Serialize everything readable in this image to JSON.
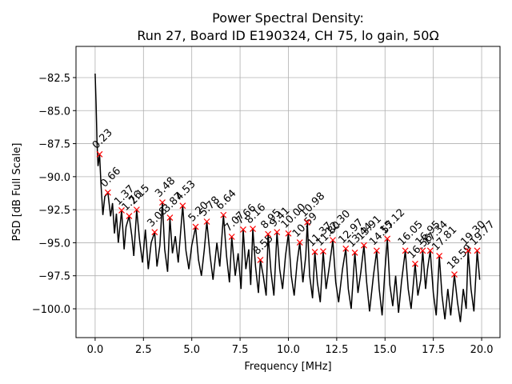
{
  "chart_data": {
    "type": "line",
    "title": [
      "Power Spectral Density:",
      "Run 27, Board ID E190324, CH 75, lo gain, 50Ω"
    ],
    "xlabel": "Frequency [MHz]",
    "ylabel": "PSD [dB Full Scale]",
    "xlim": [
      -0.99,
      20.95
    ],
    "ylim": [
      -102.18,
      -80.14
    ],
    "xticks": [
      {
        "value": 0,
        "label": "0.0"
      },
      {
        "value": 2.5,
        "label": "2.5"
      },
      {
        "value": 5,
        "label": "5.0"
      },
      {
        "value": 7.5,
        "label": "7.5"
      },
      {
        "value": 10,
        "label": "10.0"
      },
      {
        "value": 12.5,
        "label": "12.5"
      },
      {
        "value": 15,
        "label": "15.0"
      },
      {
        "value": 17.5,
        "label": "17.5"
      },
      {
        "value": 20,
        "label": "20.0"
      }
    ],
    "yticks": [
      {
        "value": -82.5,
        "label": "−82.5"
      },
      {
        "value": -85,
        "label": "−85.0"
      },
      {
        "value": -87.5,
        "label": "−87.5"
      },
      {
        "value": -90,
        "label": "−90.0"
      },
      {
        "value": -92.5,
        "label": "−92.5"
      },
      {
        "value": -95,
        "label": "−95.0"
      },
      {
        "value": -97.5,
        "label": "−97.5"
      },
      {
        "value": -100,
        "label": "−100.0"
      }
    ],
    "grid": true,
    "series": [
      {
        "style": "line",
        "color": "#000000",
        "x": [
          0,
          0.05,
          0.1,
          0.15,
          0.23,
          0.3,
          0.4,
          0.5,
          0.66,
          0.8,
          0.9,
          1.0,
          1.1,
          1.2,
          1.37,
          1.5,
          1.6,
          1.76,
          1.9,
          2.0,
          2.15,
          2.3,
          2.45,
          2.6,
          2.75,
          2.9,
          3.08,
          3.2,
          3.35,
          3.48,
          3.6,
          3.75,
          3.87,
          4.0,
          4.15,
          4.3,
          4.53,
          4.7,
          4.85,
          5.0,
          5.2,
          5.35,
          5.5,
          5.65,
          5.78,
          5.95,
          6.1,
          6.3,
          6.45,
          6.64,
          6.8,
          6.95,
          7.07,
          7.25,
          7.4,
          7.55,
          7.66,
          7.8,
          7.95,
          8.05,
          8.16,
          8.3,
          8.45,
          8.55,
          8.7,
          8.85,
          8.95,
          9.1,
          9.25,
          9.41,
          9.55,
          9.7,
          9.85,
          10.0,
          10.15,
          10.3,
          10.45,
          10.59,
          10.75,
          10.9,
          10.98,
          11.1,
          11.25,
          11.37,
          11.5,
          11.65,
          11.8,
          11.95,
          12.1,
          12.3,
          12.45,
          12.6,
          12.8,
          12.97,
          13.1,
          13.25,
          13.44,
          13.6,
          13.75,
          13.91,
          14.05,
          14.2,
          14.4,
          14.57,
          14.7,
          14.85,
          15.0,
          15.12,
          15.25,
          15.4,
          15.55,
          15.7,
          15.85,
          16.05,
          16.2,
          16.35,
          16.56,
          16.7,
          16.85,
          16.95,
          17.1,
          17.2,
          17.34,
          17.5,
          17.65,
          17.81,
          17.95,
          18.1,
          18.25,
          18.4,
          18.59,
          18.75,
          18.9,
          19.05,
          19.2,
          19.3,
          19.45,
          19.6,
          19.77,
          19.9
        ],
        "values": [
          -82.2,
          -84.5,
          -87.5,
          -89.2,
          -88.3,
          -90.5,
          -92.9,
          -91.5,
          -91.2,
          -93.0,
          -92.0,
          -94.3,
          -92.8,
          -95.0,
          -92.55,
          -95.5,
          -93.8,
          -92.98,
          -94.5,
          -96.0,
          -92.5,
          -94.8,
          -96.5,
          -94.0,
          -97.0,
          -95.0,
          -94.2,
          -96.8,
          -95.2,
          -91.95,
          -95.5,
          -97.2,
          -93.1,
          -95.8,
          -94.5,
          -96.5,
          -92.2,
          -95.6,
          -97.0,
          -95.2,
          -93.8,
          -96.3,
          -97.5,
          -95.5,
          -93.4,
          -96.0,
          -97.8,
          -95.0,
          -96.8,
          -92.9,
          -96.0,
          -98.0,
          -94.55,
          -97.5,
          -95.8,
          -98.5,
          -94.0,
          -97.0,
          -95.5,
          -98.2,
          -93.95,
          -96.8,
          -98.8,
          -96.3,
          -97.5,
          -99.0,
          -94.35,
          -97.2,
          -99.0,
          -94.2,
          -97.0,
          -98.5,
          -96.0,
          -94.3,
          -97.5,
          -99.0,
          -96.5,
          -94.98,
          -98.0,
          -96.0,
          -93.45,
          -97.5,
          -99.2,
          -95.7,
          -98.0,
          -99.5,
          -95.65,
          -98.5,
          -97.0,
          -94.8,
          -98.0,
          -99.5,
          -97.0,
          -95.45,
          -98.5,
          -100.0,
          -95.75,
          -98.8,
          -97.2,
          -95.2,
          -98.0,
          -100.2,
          -97.5,
          -95.6,
          -98.5,
          -100.5,
          -97.0,
          -94.7,
          -98.2,
          -99.8,
          -97.5,
          -100.3,
          -98.0,
          -95.6,
          -98.5,
          -100.0,
          -96.6,
          -99.0,
          -97.8,
          -95.6,
          -98.5,
          -97.0,
          -95.6,
          -98.8,
          -100.5,
          -96.0,
          -99.0,
          -100.8,
          -98.5,
          -100.5,
          -97.4,
          -99.5,
          -101.0,
          -98.5,
          -100.0,
          -95.6,
          -98.5,
          -100.2,
          -95.6,
          -97.8
        ]
      },
      {
        "style": "x-marker",
        "color": "#ff0000",
        "x": [
          0.23,
          0.66,
          1.37,
          1.76,
          2.15,
          3.08,
          3.48,
          3.87,
          4.53,
          5.2,
          5.78,
          6.64,
          7.07,
          7.66,
          8.16,
          8.55,
          8.95,
          9.41,
          10.0,
          10.59,
          10.98,
          11.37,
          11.8,
          12.3,
          12.97,
          13.44,
          13.91,
          14.57,
          15.12,
          16.05,
          16.56,
          16.95,
          17.34,
          17.81,
          18.59,
          19.3,
          19.77
        ],
        "values": [
          -88.3,
          -91.2,
          -92.55,
          -92.98,
          -92.5,
          -94.2,
          -91.95,
          -93.1,
          -92.2,
          -93.8,
          -93.4,
          -92.9,
          -94.55,
          -94.0,
          -93.95,
          -96.3,
          -94.35,
          -94.2,
          -94.3,
          -94.98,
          -93.45,
          -95.7,
          -95.65,
          -94.8,
          -95.45,
          -95.75,
          -95.2,
          -95.6,
          -94.7,
          -95.6,
          -96.6,
          -95.6,
          -95.6,
          -96.0,
          -97.4,
          -95.6,
          -95.6
        ],
        "value_labels": [
          "0.23",
          "0.66",
          "1.37",
          "1.76",
          "2.15",
          "3.08",
          "3.48",
          "3.87",
          "4.53",
          "5.20",
          "5.78",
          "6.64",
          "7.07",
          "7.66",
          "8.16",
          "8.55",
          "8.95",
          "9.41",
          "10.00",
          "10.59",
          "10.98",
          "11.37",
          "11.80",
          "12.30",
          "12.97",
          "13.44",
          "13.91",
          "14.57",
          "15.12",
          "16.05",
          "16.56",
          "16.95",
          "17.34",
          "17.81",
          "18.59",
          "19.30",
          "19.77"
        ]
      }
    ]
  }
}
